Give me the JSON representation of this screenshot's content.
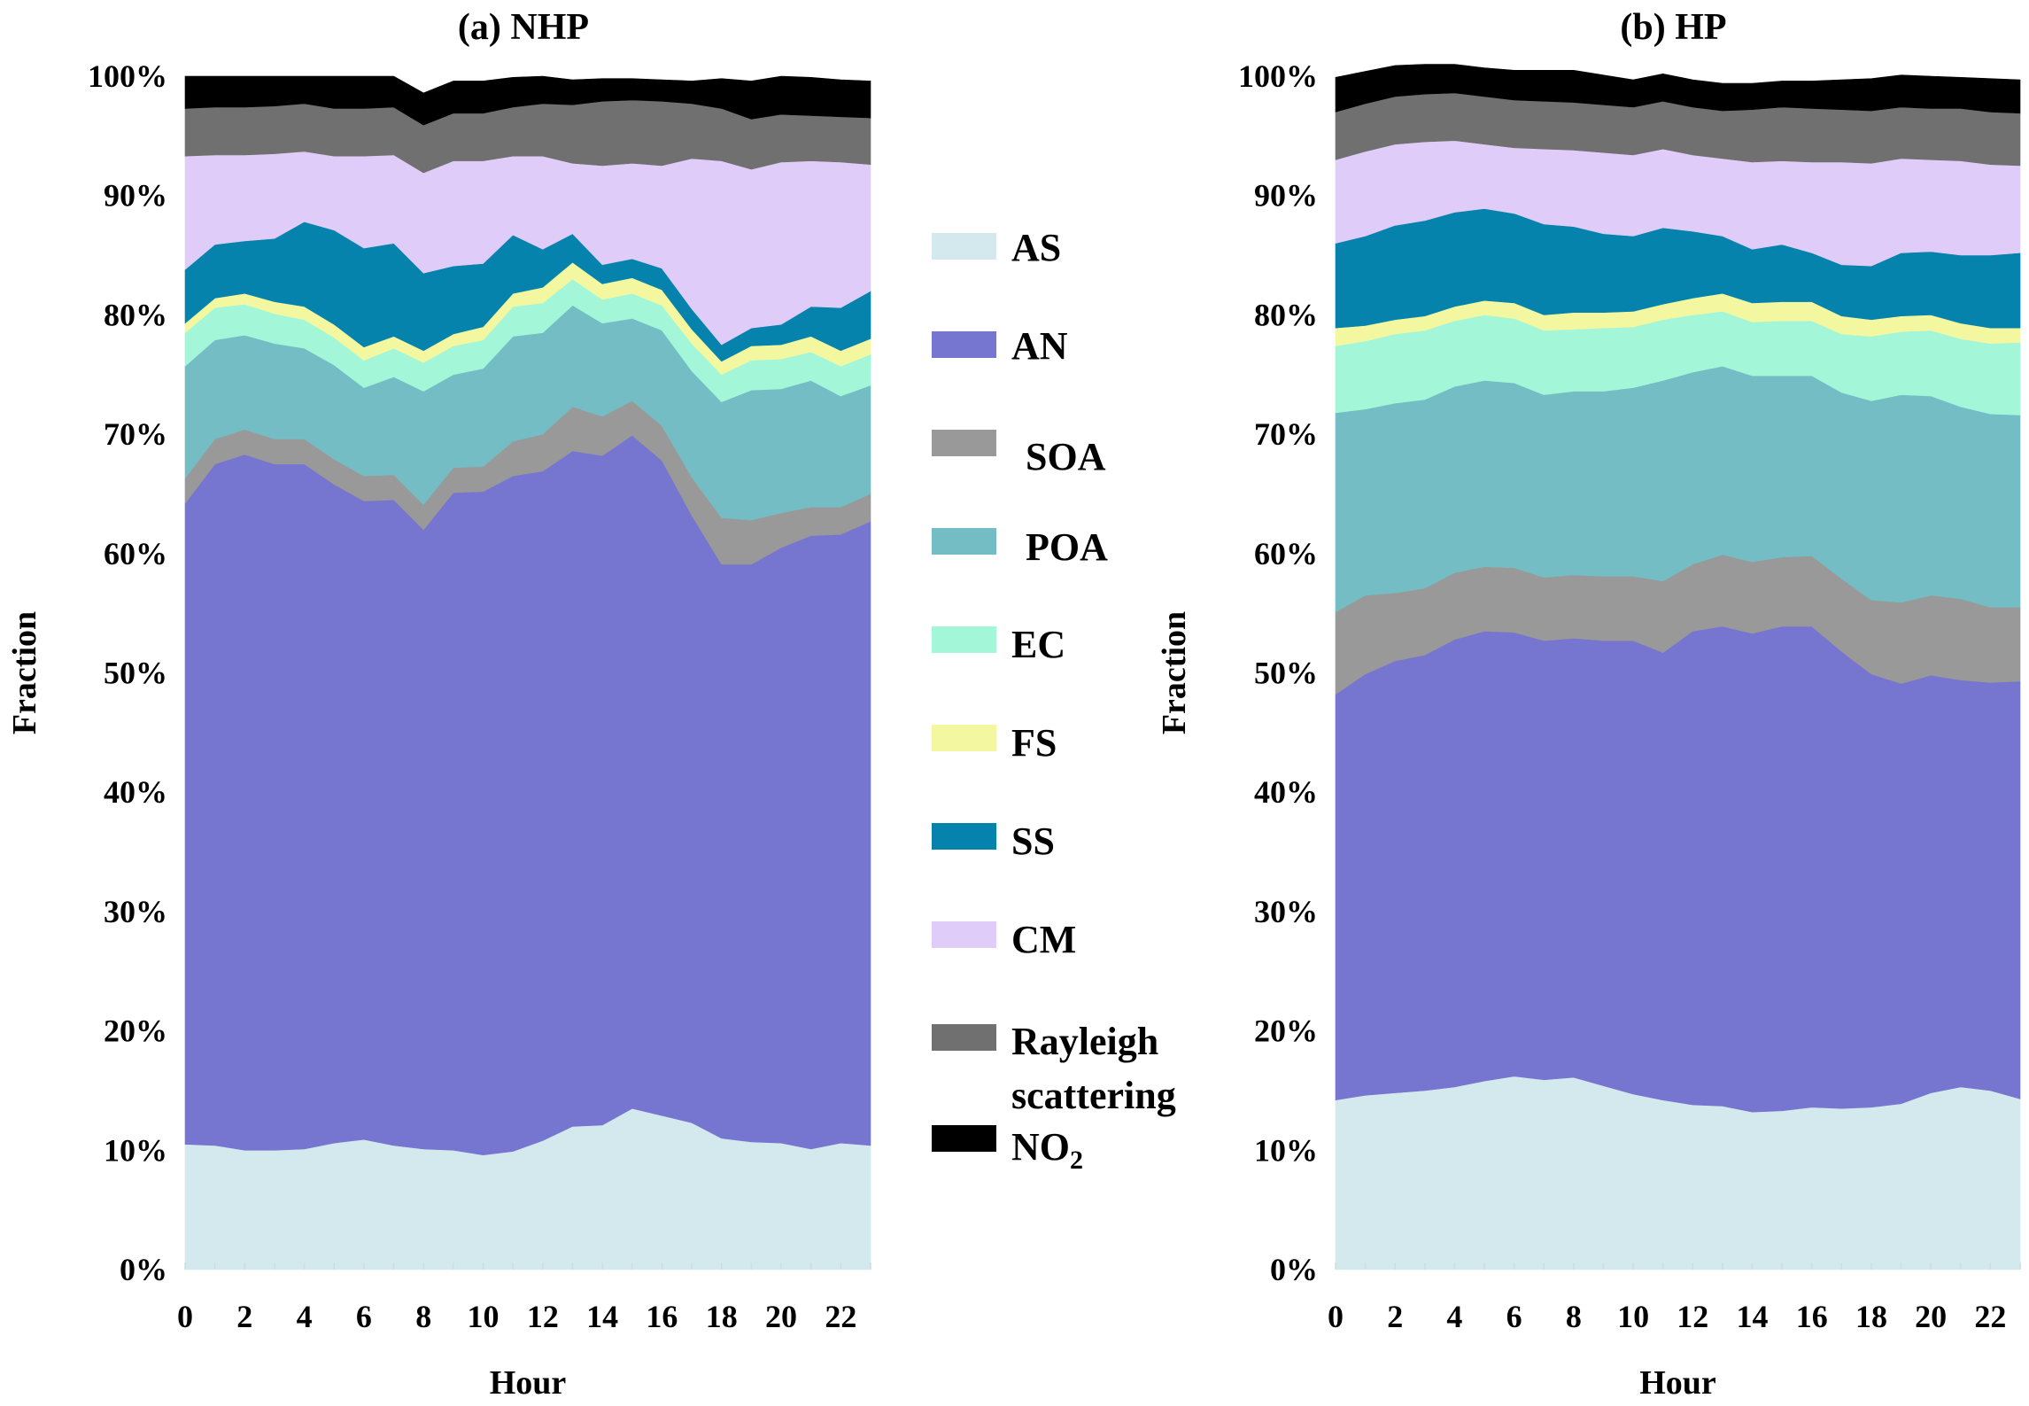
{
  "legend": {
    "items": [
      {
        "key": "AS",
        "label": "AS",
        "color": "#d4e9ed"
      },
      {
        "key": "AN",
        "label": "AN",
        "color": "#7676d0"
      },
      {
        "key": "SOA",
        "label": "SOA",
        "color": "#999999"
      },
      {
        "key": "POA",
        "label": "POA",
        "color": "#74bdc4"
      },
      {
        "key": "EC",
        "label": "EC",
        "color": "#a3f7d8"
      },
      {
        "key": "FS",
        "label": "FS",
        "color": "#f3f8a0"
      },
      {
        "key": "SS",
        "label": "SS",
        "color": "#0683ad"
      },
      {
        "key": "CM",
        "label": "CM",
        "color": "#e0ccf9"
      },
      {
        "key": "Rayleigh",
        "label": "Rayleigh scattering",
        "label_line1": "Rayleigh",
        "label_line2": "scattering",
        "color": "#707070"
      },
      {
        "key": "NO2",
        "label": "NO2",
        "label_main": "NO",
        "label_sub": "2",
        "color": "#000000"
      }
    ]
  },
  "chart_data": [
    {
      "type": "area",
      "stacked": true,
      "title": "(a) NHP",
      "xlabel": "Hour",
      "ylabel": "Fraction",
      "ylim": [
        0,
        100
      ],
      "yticks": [
        "0%",
        "10%",
        "20%",
        "30%",
        "40%",
        "50%",
        "60%",
        "70%",
        "80%",
        "90%",
        "100%"
      ],
      "xlim": [
        0,
        23
      ],
      "xticks": [
        "0",
        "2",
        "4",
        "6",
        "8",
        "10",
        "12",
        "14",
        "16",
        "18",
        "20",
        "22"
      ],
      "x": [
        0,
        1,
        2,
        3,
        4,
        5,
        6,
        7,
        8,
        9,
        10,
        11,
        12,
        13,
        14,
        15,
        16,
        17,
        18,
        19,
        20,
        21,
        22,
        23
      ],
      "series": [
        {
          "name": "AS",
          "values": [
            10.5,
            10.4,
            10.0,
            10.0,
            10.1,
            10.6,
            10.9,
            10.4,
            10.1,
            10.0,
            9.6,
            9.9,
            10.8,
            12.0,
            12.1,
            13.5,
            12.9,
            12.3,
            11.0,
            10.7,
            10.6,
            10.1,
            10.6,
            10.4
          ]
        },
        {
          "name": "AN",
          "values": [
            53.7,
            57.1,
            58.3,
            57.5,
            57.4,
            55.2,
            53.5,
            54.1,
            51.9,
            55.1,
            55.6,
            56.6,
            56.1,
            56.6,
            56.1,
            56.4,
            54.9,
            50.9,
            48.1,
            48.4,
            49.9,
            51.4,
            51.0,
            52.3
          ]
        },
        {
          "name": "SOA",
          "values": [
            2.1,
            2.1,
            2.1,
            2.1,
            2.1,
            2.1,
            2.1,
            2.1,
            2.1,
            2.1,
            2.1,
            2.9,
            3.1,
            3.7,
            3.3,
            2.9,
            2.9,
            3.2,
            3.9,
            3.7,
            2.9,
            2.4,
            2.3,
            2.3
          ]
        },
        {
          "name": "POA",
          "values": [
            9.4,
            8.3,
            7.9,
            8.0,
            7.6,
            7.9,
            7.4,
            8.2,
            9.5,
            7.8,
            8.2,
            8.8,
            8.5,
            8.5,
            7.8,
            6.9,
            8.0,
            8.9,
            9.7,
            10.9,
            10.4,
            10.6,
            9.3,
            9.1
          ]
        },
        {
          "name": "EC",
          "values": [
            2.8,
            2.7,
            2.6,
            2.5,
            2.4,
            2.3,
            2.3,
            2.4,
            2.4,
            2.4,
            2.4,
            2.5,
            2.5,
            2.2,
            2.0,
            2.1,
            2.1,
            2.3,
            2.3,
            2.5,
            2.5,
            2.4,
            2.5,
            2.6
          ]
        },
        {
          "name": "FS",
          "values": [
            0.8,
            0.8,
            0.9,
            1.0,
            1.1,
            1.1,
            1.1,
            1.0,
            1.0,
            1.0,
            1.1,
            1.1,
            1.3,
            1.4,
            1.3,
            1.3,
            1.3,
            1.2,
            1.1,
            1.2,
            1.2,
            1.3,
            1.3,
            1.3
          ]
        },
        {
          "name": "SS",
          "values": [
            4.5,
            4.5,
            4.4,
            5.3,
            7.1,
            7.9,
            8.3,
            7.8,
            6.5,
            5.7,
            5.3,
            4.9,
            3.2,
            2.4,
            1.6,
            1.6,
            1.8,
            1.7,
            1.4,
            1.5,
            1.7,
            2.5,
            3.6,
            4.0
          ]
        },
        {
          "name": "CM",
          "values": [
            9.5,
            7.5,
            7.2,
            7.1,
            5.9,
            6.2,
            7.7,
            7.4,
            8.4,
            8.8,
            8.6,
            6.6,
            7.8,
            5.9,
            8.3,
            8.0,
            8.6,
            12.6,
            15.4,
            13.3,
            13.6,
            12.2,
            12.2,
            10.6
          ]
        },
        {
          "name": "Rayleigh scattering",
          "values": [
            4.0,
            4.0,
            4.0,
            4.0,
            4.0,
            4.0,
            4.0,
            4.0,
            4.0,
            4.0,
            4.0,
            4.1,
            4.4,
            4.9,
            5.4,
            5.3,
            5.4,
            4.6,
            4.4,
            4.2,
            4.0,
            3.8,
            3.8,
            3.9
          ]
        },
        {
          "name": "NO2",
          "values": [
            2.7,
            2.6,
            2.6,
            2.5,
            2.3,
            2.7,
            2.7,
            2.6,
            2.7,
            2.7,
            2.7,
            2.5,
            2.3,
            2.1,
            1.9,
            1.8,
            1.8,
            1.9,
            2.5,
            3.2,
            3.2,
            3.2,
            3.1,
            3.1
          ]
        }
      ]
    },
    {
      "type": "area",
      "stacked": true,
      "title": "(b) HP",
      "xlabel": "Hour",
      "ylabel": "Fraction",
      "ylim": [
        0,
        100
      ],
      "yticks": [
        "0%",
        "10%",
        "20%",
        "30%",
        "40%",
        "50%",
        "60%",
        "70%",
        "80%",
        "90%",
        "100%"
      ],
      "xlim": [
        0,
        23
      ],
      "xticks": [
        "0",
        "2",
        "4",
        "6",
        "8",
        "10",
        "12",
        "14",
        "16",
        "18",
        "20",
        "22"
      ],
      "x": [
        0,
        1,
        2,
        3,
        4,
        5,
        6,
        7,
        8,
        9,
        10,
        11,
        12,
        13,
        14,
        15,
        16,
        17,
        18,
        19,
        20,
        21,
        22,
        23
      ],
      "series": [
        {
          "name": "AS",
          "values": [
            14.2,
            14.6,
            14.8,
            15.0,
            15.3,
            15.8,
            16.2,
            15.9,
            16.1,
            15.4,
            14.7,
            14.2,
            13.8,
            13.7,
            13.2,
            13.3,
            13.6,
            13.5,
            13.6,
            13.9,
            14.8,
            15.3,
            15.0,
            14.3
          ]
        },
        {
          "name": "AN",
          "values": [
            34.0,
            35.3,
            36.2,
            36.5,
            37.5,
            37.7,
            37.2,
            36.8,
            36.8,
            37.3,
            38.0,
            37.5,
            39.7,
            40.2,
            40.1,
            40.6,
            40.3,
            38.3,
            36.3,
            35.2,
            35.0,
            34.1,
            34.2,
            35.0
          ]
        },
        {
          "name": "SOA",
          "values": [
            6.9,
            6.6,
            5.7,
            5.6,
            5.6,
            5.4,
            5.4,
            5.3,
            5.3,
            5.4,
            5.4,
            6.0,
            5.6,
            6.0,
            6.0,
            5.8,
            5.9,
            6.1,
            6.2,
            6.8,
            6.7,
            6.8,
            6.3,
            6.2
          ]
        },
        {
          "name": "POA",
          "values": [
            16.7,
            15.6,
            15.9,
            15.8,
            15.6,
            15.6,
            15.5,
            15.3,
            15.4,
            15.5,
            15.8,
            16.8,
            16.1,
            15.8,
            15.6,
            15.2,
            15.1,
            15.6,
            16.7,
            17.4,
            16.7,
            16.1,
            16.2,
            16.1
          ]
        },
        {
          "name": "EC",
          "values": [
            5.6,
            5.7,
            5.8,
            5.8,
            5.5,
            5.5,
            5.4,
            5.4,
            5.2,
            5.3,
            5.1,
            5.1,
            4.8,
            4.6,
            4.5,
            4.6,
            4.6,
            4.9,
            5.4,
            5.3,
            5.5,
            5.7,
            5.9,
            6.1
          ]
        },
        {
          "name": "FS",
          "values": [
            1.5,
            1.3,
            1.2,
            1.2,
            1.2,
            1.2,
            1.3,
            1.3,
            1.4,
            1.3,
            1.3,
            1.3,
            1.4,
            1.5,
            1.6,
            1.6,
            1.6,
            1.5,
            1.4,
            1.3,
            1.3,
            1.3,
            1.3,
            1.2
          ]
        },
        {
          "name": "SS",
          "values": [
            7.1,
            7.5,
            7.9,
            8.0,
            7.9,
            7.7,
            7.5,
            7.6,
            7.2,
            6.6,
            6.3,
            6.4,
            5.6,
            4.8,
            4.5,
            4.8,
            4.1,
            4.3,
            4.5,
            5.3,
            5.3,
            5.7,
            6.1,
            6.3
          ]
        },
        {
          "name": "CM",
          "values": [
            7.0,
            7.1,
            6.8,
            6.6,
            6.0,
            5.4,
            5.5,
            6.3,
            6.4,
            6.8,
            6.8,
            6.6,
            6.4,
            6.5,
            7.3,
            7.0,
            7.6,
            8.6,
            8.6,
            7.9,
            7.7,
            7.9,
            7.6,
            7.3
          ]
        },
        {
          "name": "Rayleigh scattering",
          "values": [
            4.0,
            4.0,
            4.0,
            4.0,
            4.0,
            4.0,
            4.0,
            4.0,
            4.0,
            4.0,
            4.0,
            4.0,
            4.0,
            4.0,
            4.4,
            4.5,
            4.5,
            4.4,
            4.4,
            4.3,
            4.3,
            4.4,
            4.4,
            4.4
          ]
        },
        {
          "name": "NO2",
          "values": [
            2.9,
            2.7,
            2.6,
            2.5,
            2.4,
            2.4,
            2.5,
            2.6,
            2.7,
            2.5,
            2.3,
            2.3,
            2.3,
            2.3,
            2.2,
            2.2,
            2.3,
            2.5,
            2.7,
            2.7,
            2.7,
            2.6,
            2.8,
            2.8
          ]
        }
      ]
    }
  ]
}
